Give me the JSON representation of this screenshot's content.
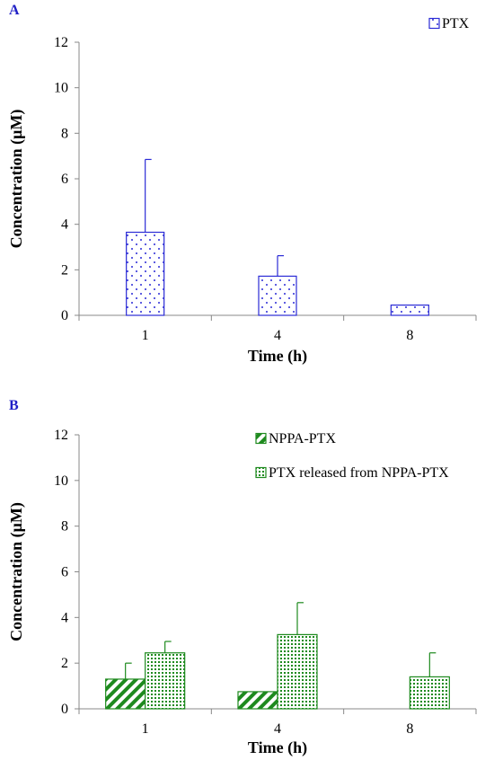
{
  "chart_data": [
    {
      "panel": "A",
      "type": "bar",
      "categories": [
        "1",
        "4",
        "8"
      ],
      "xlabel": "Time (h)",
      "ylabel": "Concentration (μM)",
      "ylim": [
        0,
        12
      ],
      "yticks": [
        "0",
        "2",
        "4",
        "6",
        "8",
        "10",
        "12"
      ],
      "legend_position": "top-right",
      "series": [
        {
          "name": "PTX",
          "color": "#2b2bd6",
          "pattern": "dots",
          "values": [
            3.65,
            1.72,
            0.45
          ],
          "errors": [
            3.2,
            0.9,
            0
          ]
        }
      ]
    },
    {
      "panel": "B",
      "type": "bar",
      "categories": [
        "1",
        "4",
        "8"
      ],
      "xlabel": "Time (h)",
      "ylabel": "Concentration (μM)",
      "ylim": [
        0,
        12
      ],
      "yticks": [
        "0",
        "2",
        "4",
        "6",
        "8",
        "10",
        "12"
      ],
      "legend_position": "top-right",
      "series": [
        {
          "name": "NPPA-PTX",
          "color": "#1e8a1e",
          "pattern": "stripes",
          "values": [
            1.3,
            0.75,
            0
          ],
          "errors": [
            0.7,
            0,
            0
          ]
        },
        {
          "name": "PTX released from NPPA-PTX",
          "color": "#1e8a1e",
          "pattern": "dense-dots",
          "values": [
            2.45,
            3.25,
            1.4
          ],
          "errors": [
            0.5,
            1.4,
            1.05
          ]
        }
      ]
    }
  ]
}
